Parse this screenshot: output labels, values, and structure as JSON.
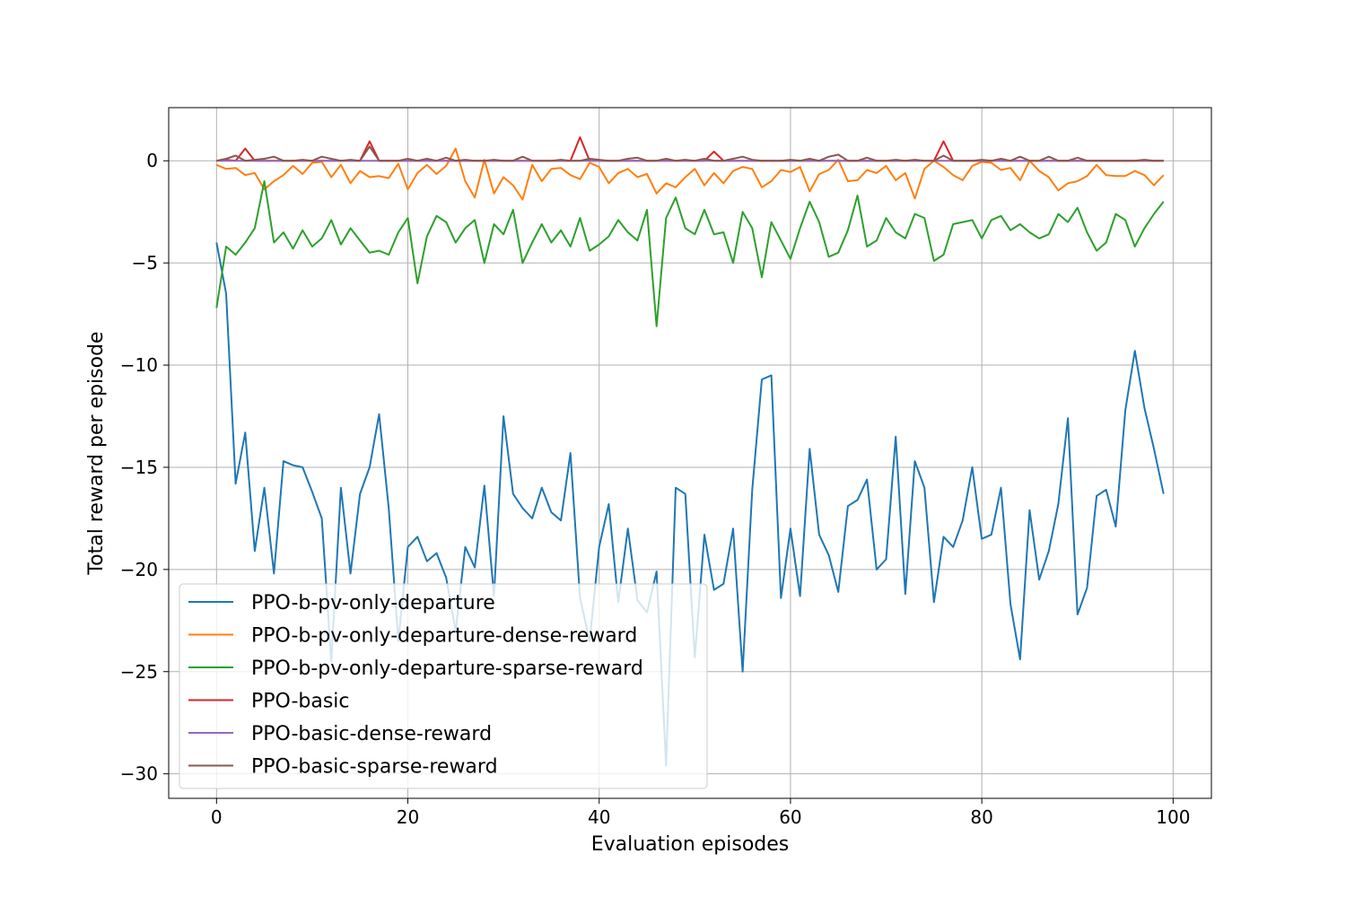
{
  "chart_data": {
    "type": "line",
    "title": "",
    "xlabel": "Evaluation episodes",
    "ylabel": "Total reward per episode",
    "xlim": [
      -5,
      104
    ],
    "ylim": [
      -31.2,
      2.6
    ],
    "xticks": [
      0,
      20,
      40,
      60,
      80,
      100
    ],
    "yticks": [
      0,
      -5,
      -10,
      -15,
      -20,
      -25,
      -30
    ],
    "grid": true,
    "legend_position": "lower-left",
    "series": [
      {
        "name": "PPO-b-pv-only-departure",
        "color": "#1f77b4",
        "values": [
          -4.0,
          -6.5,
          -15.8,
          -13.3,
          -19.1,
          -16.0,
          -20.2,
          -14.7,
          -14.9,
          -15.0,
          -16.2,
          -17.5,
          -24.5,
          -16.0,
          -20.2,
          -16.3,
          -15.0,
          -12.4,
          -17.0,
          -23.5,
          -18.9,
          -18.4,
          -19.6,
          -19.2,
          -20.4,
          -23.0,
          -18.9,
          -19.9,
          -15.9,
          -21.3,
          -12.5,
          -16.3,
          -17.0,
          -17.5,
          -16.0,
          -17.2,
          -17.6,
          -14.3,
          -21.4,
          -23.5,
          -18.9,
          -16.8,
          -21.6,
          -18.0,
          -21.5,
          -22.1,
          -20.1,
          -29.6,
          -16.0,
          -16.3,
          -24.3,
          -18.3,
          -21.0,
          -20.7,
          -18.0,
          -25.0,
          -16.1,
          -10.7,
          -10.5,
          -21.4,
          -18.0,
          -21.3,
          -14.1,
          -18.3,
          -19.3,
          -21.1,
          -16.9,
          -16.6,
          -15.6,
          -20.0,
          -19.5,
          -13.5,
          -21.2,
          -14.7,
          -16.0,
          -21.6,
          -18.4,
          -18.9,
          -17.6,
          -15.0,
          -18.5,
          -18.3,
          -16.0,
          -21.7,
          -24.4,
          -17.1,
          -20.5,
          -19.1,
          -16.8,
          -12.6,
          -22.2,
          -20.9,
          -16.4,
          -16.1,
          -17.9,
          -12.2,
          -9.3,
          -12.1,
          -14.1,
          -16.3
        ]
      },
      {
        "name": "PPO-b-pv-only-departure-dense-reward",
        "color": "#ff7f0e",
        "values": [
          -0.2,
          -0.4,
          -0.35,
          -0.7,
          -0.6,
          -1.4,
          -1.0,
          -0.7,
          -0.25,
          -0.65,
          -0.1,
          -0.05,
          -0.8,
          -0.2,
          -1.1,
          -0.5,
          -0.8,
          -0.75,
          -0.85,
          -0.15,
          -1.4,
          -0.6,
          -0.2,
          -0.65,
          -0.25,
          0.6,
          -1.0,
          -1.8,
          0.05,
          -1.6,
          -0.8,
          -1.2,
          -1.9,
          -0.2,
          -1.0,
          -0.4,
          -0.35,
          -0.7,
          -0.9,
          -0.1,
          -0.3,
          -1.1,
          -0.6,
          -0.4,
          -0.8,
          -0.65,
          -1.6,
          -1.1,
          -1.3,
          -0.8,
          -0.4,
          -1.2,
          -0.6,
          -1.1,
          -0.5,
          -0.3,
          -0.4,
          -1.3,
          -1.0,
          -0.45,
          -0.55,
          -0.3,
          -1.5,
          -0.65,
          -0.45,
          0.05,
          -1.0,
          -0.95,
          -0.45,
          -0.6,
          -0.25,
          -0.95,
          -0.6,
          -1.85,
          -0.4,
          0.0,
          -0.3,
          -0.7,
          -0.95,
          -0.25,
          -0.05,
          -0.1,
          -0.45,
          -0.35,
          -0.95,
          0.0,
          -0.5,
          -0.8,
          -1.45,
          -1.1,
          -1.0,
          -0.75,
          -0.2,
          -0.7,
          -0.75,
          -0.75,
          -0.5,
          -0.7,
          -1.2,
          -0.7
        ]
      },
      {
        "name": "PPO-b-pv-only-departure-sparse-reward",
        "color": "#2ca02c",
        "values": [
          -7.2,
          -4.2,
          -4.6,
          -4.0,
          -3.3,
          -1.0,
          -4.0,
          -3.5,
          -4.3,
          -3.4,
          -4.2,
          -3.8,
          -2.9,
          -4.1,
          -3.3,
          -3.9,
          -4.5,
          -4.4,
          -4.6,
          -3.5,
          -2.8,
          -6.0,
          -3.7,
          -2.7,
          -3.0,
          -4.0,
          -3.3,
          -2.9,
          -5.0,
          -3.1,
          -3.6,
          -2.4,
          -5.0,
          -4.0,
          -3.1,
          -4.0,
          -3.4,
          -4.2,
          -2.8,
          -4.4,
          -4.1,
          -3.7,
          -2.9,
          -3.5,
          -3.9,
          -2.4,
          -8.1,
          -2.8,
          -1.8,
          -3.3,
          -3.6,
          -2.4,
          -3.6,
          -3.5,
          -5.0,
          -2.5,
          -3.3,
          -5.7,
          -3.0,
          -3.9,
          -4.8,
          -3.3,
          -2.0,
          -3.0,
          -4.7,
          -4.5,
          -3.4,
          -1.7,
          -4.2,
          -3.9,
          -2.8,
          -3.5,
          -3.8,
          -2.6,
          -2.8,
          -4.9,
          -4.6,
          -3.1,
          -3.0,
          -2.9,
          -3.8,
          -2.9,
          -2.7,
          -3.4,
          -3.1,
          -3.5,
          -3.8,
          -3.6,
          -2.6,
          -3.0,
          -2.3,
          -3.5,
          -4.4,
          -4.0,
          -2.6,
          -2.9,
          -4.2,
          -3.3,
          -2.6,
          -2.0
        ]
      },
      {
        "name": "PPO-basic",
        "color": "#d62728",
        "values": [
          0.0,
          0.05,
          0.0,
          0.6,
          0.0,
          0.0,
          0.0,
          0.0,
          0.0,
          0.0,
          0.0,
          0.0,
          0.0,
          0.0,
          0.0,
          0.0,
          0.95,
          0.0,
          0.0,
          0.0,
          0.0,
          0.0,
          0.0,
          0.0,
          0.0,
          0.0,
          0.0,
          0.0,
          0.0,
          0.0,
          0.0,
          0.0,
          0.0,
          0.0,
          0.0,
          0.0,
          0.0,
          0.0,
          1.15,
          0.0,
          0.0,
          0.0,
          0.0,
          0.0,
          0.0,
          0.0,
          0.0,
          0.0,
          0.0,
          0.0,
          0.0,
          0.0,
          0.45,
          0.0,
          0.0,
          0.0,
          0.0,
          0.0,
          0.0,
          0.0,
          0.0,
          0.0,
          0.0,
          0.0,
          0.0,
          0.0,
          0.0,
          0.0,
          0.0,
          0.0,
          0.0,
          0.0,
          0.0,
          0.0,
          0.0,
          0.0,
          0.95,
          0.0,
          0.0,
          0.0,
          0.0,
          0.0,
          0.0,
          0.0,
          0.0,
          0.0,
          0.0,
          0.0,
          0.0,
          0.0,
          0.0,
          0.0,
          0.0,
          0.0,
          0.0,
          0.0,
          0.0,
          0.0,
          0.0,
          0.0
        ]
      },
      {
        "name": "PPO-basic-dense-reward",
        "color": "#9467bd",
        "values": [
          0.0,
          0.0,
          0.0,
          0.0,
          0.0,
          0.0,
          0.0,
          0.0,
          0.0,
          0.0,
          0.0,
          0.0,
          0.0,
          0.0,
          0.0,
          0.0,
          0.0,
          0.0,
          0.0,
          0.0,
          0.0,
          0.0,
          0.0,
          0.0,
          0.0,
          0.0,
          0.0,
          0.0,
          0.0,
          0.0,
          0.0,
          0.0,
          0.0,
          0.0,
          0.0,
          0.0,
          0.0,
          0.0,
          0.0,
          0.0,
          0.0,
          0.0,
          0.0,
          0.0,
          0.0,
          0.0,
          0.0,
          0.0,
          0.0,
          0.0,
          0.0,
          0.0,
          0.0,
          0.0,
          0.0,
          0.0,
          0.0,
          0.0,
          0.0,
          0.0,
          0.0,
          0.0,
          0.0,
          0.0,
          0.0,
          0.0,
          0.0,
          0.0,
          0.0,
          0.0,
          0.0,
          0.0,
          0.0,
          0.0,
          0.0,
          0.0,
          0.0,
          0.0,
          0.0,
          0.0,
          0.0,
          0.0,
          0.0,
          0.0,
          0.0,
          0.0,
          0.0,
          0.0,
          0.0,
          0.0,
          0.0,
          0.0,
          0.0,
          0.0,
          0.0,
          0.0,
          0.0,
          0.0,
          0.0,
          0.0
        ]
      },
      {
        "name": "PPO-basic-sparse-reward",
        "color": "#8c564b",
        "values": [
          0.0,
          0.1,
          0.25,
          0.0,
          0.05,
          0.1,
          0.2,
          0.0,
          0.0,
          0.05,
          0.0,
          0.2,
          0.1,
          0.0,
          0.05,
          0.0,
          0.7,
          0.0,
          0.0,
          0.0,
          0.1,
          0.0,
          0.1,
          0.0,
          0.15,
          0.0,
          0.05,
          0.0,
          0.0,
          0.05,
          0.0,
          0.0,
          0.2,
          0.0,
          0.0,
          0.0,
          0.05,
          0.0,
          0.0,
          0.1,
          0.05,
          0.0,
          0.0,
          0.1,
          0.15,
          0.0,
          0.0,
          0.1,
          0.0,
          0.05,
          0.0,
          0.1,
          0.0,
          0.0,
          0.1,
          0.2,
          0.05,
          0.0,
          0.0,
          0.0,
          0.05,
          0.0,
          0.1,
          0.0,
          0.2,
          0.3,
          0.0,
          0.0,
          0.15,
          0.0,
          0.0,
          0.05,
          0.0,
          0.05,
          0.0,
          0.0,
          0.25,
          0.0,
          0.0,
          0.0,
          0.05,
          0.0,
          0.1,
          0.0,
          0.2,
          0.0,
          0.0,
          0.2,
          0.0,
          0.0,
          0.15,
          0.0,
          0.0,
          0.0,
          0.0,
          0.0,
          0.0,
          0.05,
          0.0,
          0.0
        ]
      }
    ]
  }
}
